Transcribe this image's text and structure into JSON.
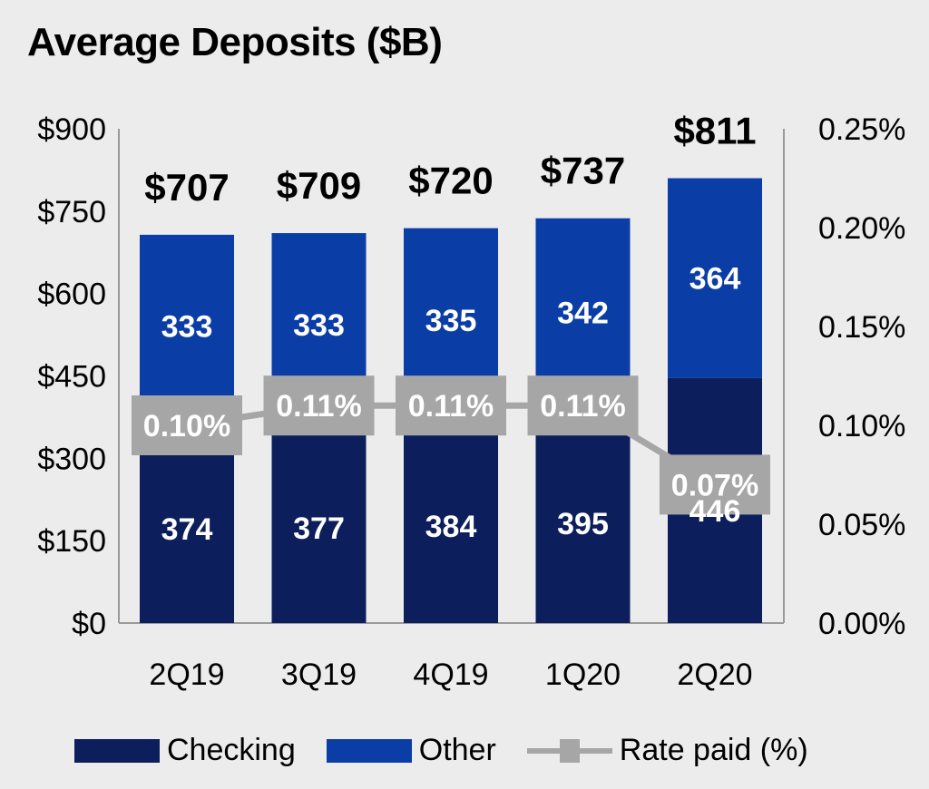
{
  "chart_data": {
    "type": "bar",
    "stacked": true,
    "title": "Average Deposits ($B)",
    "categories": [
      "2Q19",
      "3Q19",
      "4Q19",
      "1Q20",
      "2Q20"
    ],
    "series": [
      {
        "name": "Checking",
        "values": [
          374,
          377,
          384,
          395,
          446
        ],
        "color": "#0c1f5c"
      },
      {
        "name": "Other",
        "values": [
          333,
          333,
          335,
          342,
          364
        ],
        "color": "#0b3da6"
      }
    ],
    "totals": [
      "$707",
      "$709",
      "$720",
      "$737",
      "$811"
    ],
    "segment_labels": {
      "Checking": [
        "374",
        "377",
        "384",
        "395",
        "446"
      ],
      "Other": [
        "333",
        "333",
        "335",
        "342",
        "364"
      ]
    },
    "line_series": {
      "name": "Rate paid (%)",
      "values": [
        0.1,
        0.11,
        0.11,
        0.11,
        0.07
      ],
      "labels": [
        "0.10%",
        "0.11%",
        "0.11%",
        "0.11%",
        "0.07%"
      ],
      "color": "#a6a6a6",
      "axis": "right"
    },
    "ylim": [
      0,
      900
    ],
    "yticks": [
      "$0",
      "$150",
      "$300",
      "$450",
      "$600",
      "$750",
      "$900"
    ],
    "y2lim": [
      0,
      0.25
    ],
    "y2ticks": [
      "0.00%",
      "0.05%",
      "0.10%",
      "0.15%",
      "0.20%",
      "0.25%"
    ],
    "xlabel": "",
    "ylabel": "",
    "grid": false,
    "legend_position": "bottom",
    "legend": [
      "Checking",
      "Other",
      "Rate paid (%)"
    ]
  }
}
